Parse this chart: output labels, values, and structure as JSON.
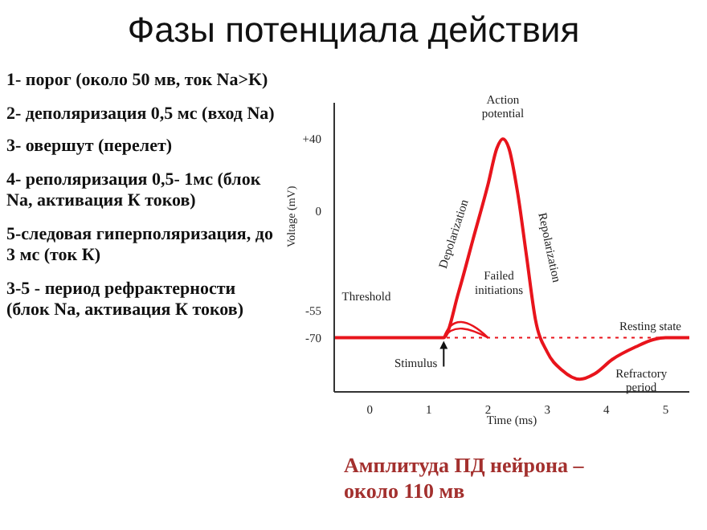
{
  "chart_data": {
    "type": "line",
    "title": "Фазы потенциала действия",
    "xlabel": "Time (ms)",
    "ylabel": "Voltage (mV)",
    "xlim": [
      -0.6,
      5.4
    ],
    "xticks": [
      0,
      1,
      2,
      3,
      4,
      5
    ],
    "ylim": [
      -100,
      60
    ],
    "yticks": [
      {
        "value": 40,
        "label": "+40"
      },
      0,
      -55,
      -70
    ],
    "line_style": "solid",
    "series": [
      {
        "color": "#e8141c",
        "x": [
          -0.6,
          1.25,
          1.5,
          1.75,
          2.0,
          2.15,
          2.25,
          2.35,
          2.5,
          2.65,
          2.8,
          3.0,
          3.25,
          3.55,
          3.8,
          4.1,
          4.5,
          4.8,
          5.0,
          5.4
        ],
        "values": [
          -70,
          -70,
          -45,
          -15,
          15,
          35,
          40,
          35,
          10,
          -25,
          -60,
          -78,
          -88,
          -93,
          -90,
          -82,
          -75,
          -71,
          -70,
          -70
        ]
      }
    ],
    "ref_lines": [
      {
        "axis": "y",
        "value": -70,
        "label": "Resting state",
        "color": "#e8141c",
        "line_style": "dotted"
      }
    ],
    "annotations": [
      {
        "text": "Action potential",
        "x": 2.25,
        "y": 40
      },
      {
        "text": "Depolarization",
        "x": 1.75,
        "y": -15
      },
      {
        "text": "Repolarization",
        "x": 2.65,
        "y": -25
      },
      {
        "text": "Stimulus",
        "x": 1.25,
        "y": -70
      },
      {
        "text": "Refractory period",
        "x": 4.1,
        "y": -82
      },
      "Threshold",
      "Failed initiations",
      "1- порог (около 50 мв, ток Na>K)",
      "2- деполяризация 0,5 мс (вход Na)",
      "3- овершут (перелет)",
      "4- реполяризация 0,5- 1мс (блок Na, активация К токов)",
      "5-следовая гиперполяризация, до 3 мс (ток К)",
      "3-5 - период рефрактерности (блок Na, активация К токов)",
      "Амплитуда ПД нейрона – около 110 мв"
    ]
  }
}
